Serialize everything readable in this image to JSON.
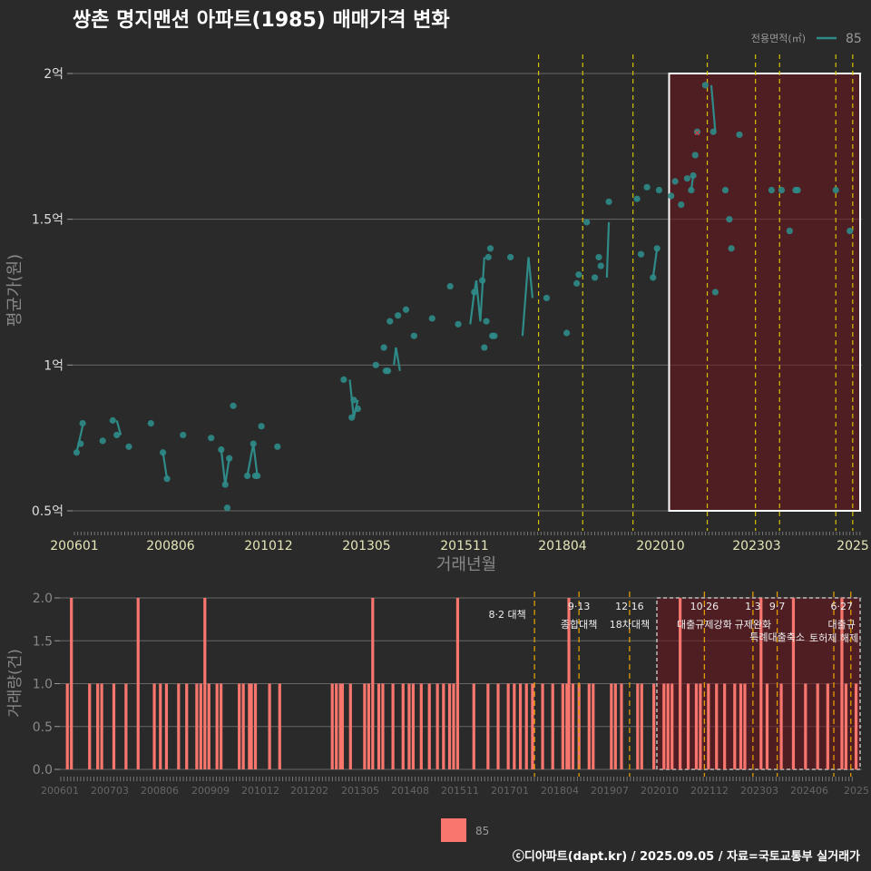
{
  "title": "쌍촌 명지맨션 아파트(1985) 매매가격 변화",
  "footer": "ⓒ디아파트(dapt.kr) / 2025.09.05 / 자료=국토교통부 실거래가",
  "chart_data": [
    {
      "type": "scatter",
      "xlabel": "거래년월",
      "ylabel": "평균가(원)",
      "ytick_labels": [
        "0.5억",
        "1억",
        "1.5억",
        "2억"
      ],
      "ytick_values": [
        0.5,
        1.0,
        1.5,
        2.0
      ],
      "ylim": [
        0.44,
        2.08
      ],
      "xtick_labels": [
        "200601",
        "200806",
        "201012",
        "201305",
        "201511",
        "201804",
        "202010",
        "202303",
        "2025"
      ],
      "legend_title": "전용면적(㎡)",
      "legend_label": "85",
      "series_color": "#2e8b88",
      "highlight_start_year": 2020.85,
      "x": [
        2006.1,
        2006.2,
        2006.25,
        2006.75,
        2007.0,
        2007.1,
        2007.4,
        2007.95,
        2008.25,
        2008.35,
        2008.75,
        2009.45,
        2009.7,
        2009.8,
        2009.85,
        2009.9,
        2010.0,
        2010.35,
        2010.5,
        2010.55,
        2010.6,
        2010.7,
        2011.1,
        2012.75,
        2012.95,
        2013.0,
        2013.1,
        2013.55,
        2013.75,
        2013.8,
        2013.85,
        2013.9,
        2014.1,
        2014.3,
        2014.5,
        2014.95,
        2015.4,
        2015.6,
        2016.0,
        2016.2,
        2016.25,
        2016.3,
        2016.35,
        2016.4,
        2016.45,
        2016.5,
        2016.9,
        2017.8,
        2018.3,
        2018.55,
        2018.6,
        2018.8,
        2019.0,
        2019.1,
        2019.15,
        2019.35,
        2020.05,
        2020.15,
        2020.3,
        2020.45,
        2020.55,
        2020.6,
        2020.9,
        2021.0,
        2021.15,
        2021.3,
        2021.4,
        2021.45,
        2021.5,
        2021.55,
        2021.75,
        2021.95,
        2022.0,
        2022.25,
        2022.35,
        2022.4,
        2022.6,
        2023.4,
        2023.65,
        2023.85,
        2024.0,
        2024.05,
        2025.0,
        2025.35
      ],
      "values": [
        0.7,
        0.73,
        0.8,
        0.74,
        0.81,
        0.76,
        0.72,
        0.8,
        0.7,
        0.61,
        0.76,
        0.75,
        0.71,
        0.59,
        0.51,
        0.68,
        0.86,
        0.62,
        0.73,
        0.62,
        0.62,
        0.79,
        0.72,
        0.95,
        0.82,
        0.88,
        0.85,
        1.0,
        1.06,
        0.98,
        0.98,
        1.15,
        1.17,
        1.19,
        1.1,
        1.16,
        1.27,
        1.14,
        1.25,
        1.29,
        1.06,
        1.15,
        1.37,
        1.4,
        1.1,
        1.1,
        1.37,
        1.23,
        1.11,
        1.28,
        1.31,
        1.49,
        1.3,
        1.37,
        1.34,
        1.56,
        1.57,
        1.38,
        1.61,
        1.3,
        1.4,
        1.6,
        1.58,
        1.63,
        1.55,
        1.64,
        1.6,
        1.65,
        1.72,
        1.8,
        1.96,
        1.8,
        1.25,
        1.6,
        1.5,
        1.4,
        1.79,
        1.6,
        1.6,
        1.46,
        1.6,
        1.6,
        1.6,
        1.46
      ],
      "connected_segments": [
        [
          2006.1,
          0.7,
          2006.25,
          0.79
        ],
        [
          2007.1,
          0.81,
          2007.2,
          0.76
        ],
        [
          2008.25,
          0.7,
          2008.35,
          0.61
        ],
        [
          2009.7,
          0.71,
          2009.8,
          0.59
        ],
        [
          2009.8,
          0.59,
          2009.9,
          0.68
        ],
        [
          2010.35,
          0.62,
          2010.5,
          0.73
        ],
        [
          2010.5,
          0.73,
          2010.6,
          0.62
        ],
        [
          2012.9,
          0.95,
          2013.0,
          0.82
        ],
        [
          2013.0,
          0.82,
          2013.1,
          0.88
        ],
        [
          2014.0,
          1.0,
          2014.05,
          1.06
        ],
        [
          2014.05,
          1.06,
          2014.15,
          0.98
        ],
        [
          2015.9,
          1.14,
          2016.0,
          1.25
        ],
        [
          2016.0,
          1.25,
          2016.05,
          1.29
        ],
        [
          2016.05,
          1.29,
          2016.15,
          1.15
        ],
        [
          2016.15,
          1.15,
          2016.25,
          1.37
        ],
        [
          2017.2,
          1.1,
          2017.35,
          1.37
        ],
        [
          2017.35,
          1.37,
          2017.45,
          1.23
        ],
        [
          2019.35,
          1.49,
          2019.3,
          1.3
        ],
        [
          2020.45,
          1.3,
          2020.55,
          1.4
        ],
        [
          2021.4,
          1.6,
          2021.45,
          1.65
        ],
        [
          2021.9,
          1.96,
          2022.0,
          1.8
        ]
      ],
      "policy_lines_years": [
        2017.6,
        2018.7,
        2019.95,
        2021.8,
        2023.0,
        2023.6,
        2025.0,
        2025.42
      ]
    },
    {
      "type": "bar",
      "xlabel": "",
      "ylabel": "거래량(건)",
      "ytick_labels": [
        "0.0",
        "0.5",
        "1.0",
        "1.5",
        "2.0"
      ],
      "ytick_values": [
        0.0,
        0.5,
        1.0,
        1.5,
        2.0
      ],
      "ylim": [
        0,
        2.0
      ],
      "xtick_labels": [
        "200601",
        "200703",
        "200806",
        "200909",
        "201012",
        "201202",
        "201305",
        "201408",
        "201511",
        "201701",
        "201804",
        "201907",
        "202010",
        "202112",
        "202303",
        "202406",
        "2025"
      ],
      "legend_label": "85",
      "bar_color": "#f8766d",
      "bars": [
        [
          2006.05,
          1
        ],
        [
          2006.15,
          2
        ],
        [
          2006.6,
          1
        ],
        [
          2006.8,
          1
        ],
        [
          2006.9,
          1
        ],
        [
          2007.2,
          1
        ],
        [
          2007.5,
          1
        ],
        [
          2007.8,
          2
        ],
        [
          2008.2,
          1
        ],
        [
          2008.35,
          1
        ],
        [
          2008.5,
          1
        ],
        [
          2008.8,
          1
        ],
        [
          2009.0,
          1
        ],
        [
          2009.25,
          1
        ],
        [
          2009.35,
          1
        ],
        [
          2009.45,
          2
        ],
        [
          2009.55,
          1
        ],
        [
          2009.75,
          1
        ],
        [
          2009.85,
          1
        ],
        [
          2010.3,
          1
        ],
        [
          2010.4,
          1
        ],
        [
          2010.55,
          1
        ],
        [
          2010.6,
          1
        ],
        [
          2010.7,
          1
        ],
        [
          2011.05,
          1
        ],
        [
          2011.3,
          1
        ],
        [
          2012.6,
          1
        ],
        [
          2012.7,
          1
        ],
        [
          2012.8,
          1
        ],
        [
          2012.85,
          1
        ],
        [
          2013.05,
          1
        ],
        [
          2013.4,
          1
        ],
        [
          2013.5,
          1
        ],
        [
          2013.6,
          2
        ],
        [
          2013.75,
          1
        ],
        [
          2013.85,
          1
        ],
        [
          2014.1,
          1
        ],
        [
          2014.35,
          1
        ],
        [
          2014.5,
          1
        ],
        [
          2014.6,
          1
        ],
        [
          2014.8,
          1
        ],
        [
          2015.0,
          1
        ],
        [
          2015.2,
          1
        ],
        [
          2015.35,
          1
        ],
        [
          2015.5,
          1
        ],
        [
          2015.6,
          1
        ],
        [
          2015.7,
          2
        ],
        [
          2016.1,
          1
        ],
        [
          2016.45,
          1
        ],
        [
          2016.7,
          1
        ],
        [
          2016.95,
          1
        ],
        [
          2017.1,
          1
        ],
        [
          2017.25,
          1
        ],
        [
          2017.4,
          1
        ],
        [
          2017.55,
          1
        ],
        [
          2017.8,
          1
        ],
        [
          2018.05,
          1
        ],
        [
          2018.3,
          1
        ],
        [
          2018.4,
          1
        ],
        [
          2018.45,
          2
        ],
        [
          2018.55,
          1
        ],
        [
          2018.7,
          1
        ],
        [
          2018.95,
          1
        ],
        [
          2019.05,
          1
        ],
        [
          2019.5,
          1
        ],
        [
          2019.6,
          1
        ],
        [
          2019.75,
          1
        ],
        [
          2020.15,
          1
        ],
        [
          2020.25,
          1
        ],
        [
          2020.55,
          1
        ],
        [
          2020.8,
          1
        ],
        [
          2020.9,
          1
        ],
        [
          2021.0,
          1
        ],
        [
          2021.2,
          2
        ],
        [
          2021.4,
          1
        ],
        [
          2021.6,
          1
        ],
        [
          2021.7,
          1
        ],
        [
          2021.9,
          1
        ],
        [
          2022.1,
          1
        ],
        [
          2022.3,
          1
        ],
        [
          2022.55,
          1
        ],
        [
          2022.7,
          1
        ],
        [
          2022.8,
          1
        ],
        [
          2023.2,
          2
        ],
        [
          2023.35,
          1
        ],
        [
          2023.7,
          1
        ],
        [
          2024.0,
          2
        ],
        [
          2024.3,
          1
        ],
        [
          2024.6,
          1
        ],
        [
          2024.85,
          1
        ],
        [
          2025.2,
          2
        ],
        [
          2025.3,
          1
        ],
        [
          2025.55,
          1
        ]
      ],
      "policies": [
        {
          "year": 2017.6,
          "lines": [
            "8·2 대책"
          ]
        },
        {
          "year": 2018.7,
          "lines": [
            "9·13",
            "종합대책"
          ]
        },
        {
          "year": 2019.95,
          "lines": [
            "12·16",
            "18차대책"
          ]
        },
        {
          "year": 2021.8,
          "lines": [
            "10·26",
            "대출규제강화"
          ]
        },
        {
          "year": 2023.0,
          "lines": [
            "1·3",
            "규제완화"
          ]
        },
        {
          "year": 2023.6,
          "lines": [
            "9·7",
            "특례대출축소"
          ]
        },
        {
          "year": 2025.0,
          "lines": [
            "",
            "토허제 해제"
          ]
        },
        {
          "year": 2025.42,
          "lines": [
            "6·27",
            "대출규"
          ]
        }
      ]
    }
  ]
}
